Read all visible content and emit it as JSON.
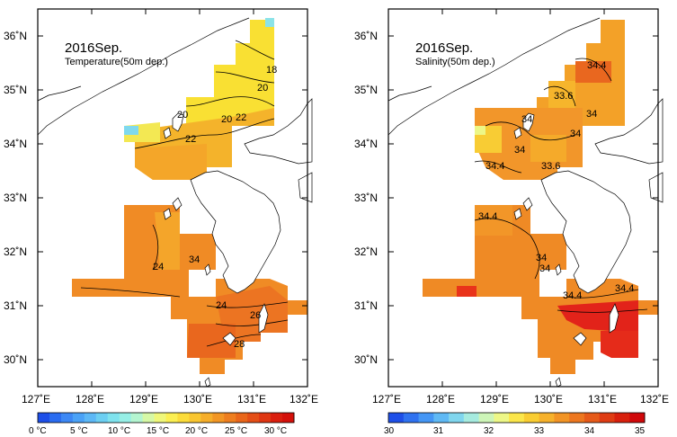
{
  "panels": [
    {
      "title": "2016Sep.",
      "subtitle": "Temperature(50m dep.)",
      "contour_labels": [
        "18",
        "20",
        "20",
        "20",
        "22",
        "22",
        "24",
        "24",
        "26",
        "28",
        "34"
      ],
      "colorbar": {
        "labels": [
          "0 °C",
          "5 °C",
          "10 °C",
          "15 °C",
          "20 °C",
          "25 °C",
          "30 °C"
        ],
        "colors": [
          "#1e4fe8",
          "#2a6cf0",
          "#3c88f5",
          "#4aa2f7",
          "#5cb8f6",
          "#6ccff2",
          "#7fe3ee",
          "#96efe6",
          "#b4f5d0",
          "#d6f8a6",
          "#eff77a",
          "#fbef52",
          "#fbdc3a",
          "#f9c630",
          "#f6ae2a",
          "#f29624",
          "#ee7e1f",
          "#e9661a",
          "#e44e16",
          "#df3612",
          "#da1e0e",
          "#d4100a"
        ]
      }
    },
    {
      "title": "2016Sep.",
      "subtitle": "Salinity(50m dep.)",
      "contour_labels": [
        "34.4",
        "33.6",
        "34",
        "34",
        "34",
        "34",
        "34.4",
        "33.6",
        "34.4",
        "34",
        "34",
        "34.4",
        "34.4"
      ],
      "colorbar": {
        "labels": [
          "30",
          "31",
          "32",
          "33",
          "34",
          "35"
        ],
        "colors": [
          "#1e4fe8",
          "#2f72f0",
          "#4496f5",
          "#5fb9f4",
          "#80d6ee",
          "#a6ebdf",
          "#cdf5b8",
          "#edf787",
          "#fbe64a",
          "#f9cd32",
          "#f6b12b",
          "#f29425",
          "#ed771f",
          "#e65a19",
          "#df3c13",
          "#d8200d",
          "#d0080a"
        ]
      }
    }
  ],
  "axes": {
    "x_ticks": [
      "127˚E",
      "128˚E",
      "129˚E",
      "130˚E",
      "131˚E",
      "132˚E"
    ],
    "y_ticks": [
      "36˚N",
      "35˚N",
      "34˚N",
      "33˚N",
      "32˚N",
      "31˚N",
      "30˚N"
    ]
  }
}
